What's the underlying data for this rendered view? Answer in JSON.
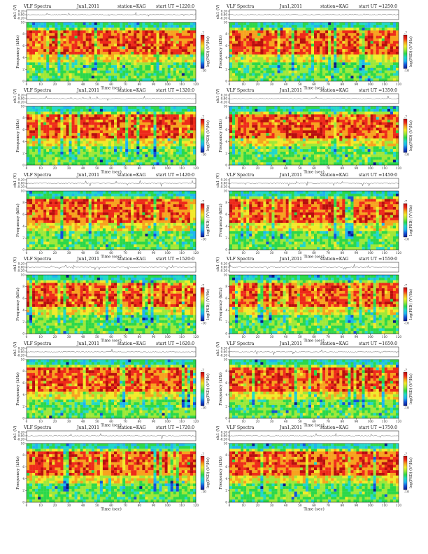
{
  "colors": {
    "colormap": [
      "#0a1a8a",
      "#1450d8",
      "#20b4f0",
      "#22d8c8",
      "#2cd84a",
      "#9ee838",
      "#f2ea2a",
      "#f7a21e",
      "#ee2a1a",
      "#b80e0e"
    ],
    "trace": "#222222",
    "frame": "#000000"
  },
  "common": {
    "title": "VLF Spectra",
    "station": "station=KAG",
    "ch_label": "ch1 (V)",
    "freq_label": "Frequency (kHz)",
    "time_label": "Time (sec)",
    "colorbar_label": "log(PSD) (V²/Hz)"
  },
  "chart_data": [
    {
      "type": "heatmap",
      "date": "Jun1,2011",
      "start_ut": "start UT =1220:0",
      "trace_yticks": [
        "0.20",
        "0.00",
        "-0.20"
      ],
      "trace_ylim": [
        -0.2,
        0.2
      ],
      "xlim": [
        0,
        120
      ],
      "xticks": [
        0,
        10,
        20,
        30,
        40,
        50,
        60,
        70,
        80,
        90,
        100,
        110,
        120
      ],
      "ylim": [
        0,
        10
      ],
      "yticks": [
        0,
        2,
        4,
        6,
        8,
        10
      ],
      "colorbar_ticks": [
        "-7",
        "-10"
      ],
      "colorbar_range": [
        -10,
        -7
      ]
    },
    {
      "type": "heatmap",
      "date": "Jun1,2011",
      "start_ut": "start UT =1250:0",
      "trace_yticks": [
        "0.20",
        "0.00",
        "-0.20"
      ],
      "trace_ylim": [
        -0.2,
        0.2
      ],
      "xlim": [
        0,
        120
      ],
      "xticks": [
        0,
        10,
        20,
        30,
        40,
        50,
        60,
        70,
        80,
        90,
        100,
        110,
        120
      ],
      "ylim": [
        0,
        10
      ],
      "yticks": [
        0,
        2,
        4,
        6,
        8,
        10
      ],
      "colorbar_ticks": [
        "-7",
        "-10"
      ],
      "colorbar_range": [
        -10,
        -7
      ]
    },
    {
      "type": "heatmap",
      "date": "Jun1,2011",
      "start_ut": "start UT =1320:0",
      "trace_yticks": [
        "0.20",
        "0.00",
        "-0.20"
      ],
      "trace_ylim": [
        -0.2,
        0.2
      ],
      "xlim": [
        0,
        120
      ],
      "xticks": [
        0,
        10,
        20,
        30,
        40,
        50,
        60,
        70,
        80,
        90,
        100,
        110,
        120
      ],
      "ylim": [
        0,
        10
      ],
      "yticks": [
        0,
        2,
        4,
        6,
        8,
        10
      ],
      "colorbar_ticks": [
        "-7",
        "-10"
      ],
      "colorbar_range": [
        -10,
        -7
      ]
    },
    {
      "type": "heatmap",
      "date": "Jun1,2011",
      "start_ut": "start UT =1350:0",
      "trace_yticks": [
        "0.20",
        "0.00",
        "-0.20"
      ],
      "trace_ylim": [
        -0.2,
        0.2
      ],
      "xlim": [
        0,
        120
      ],
      "xticks": [
        0,
        10,
        20,
        30,
        40,
        50,
        60,
        70,
        80,
        90,
        100,
        110,
        120
      ],
      "ylim": [
        0,
        10
      ],
      "yticks": [
        0,
        2,
        4,
        6,
        8,
        10
      ],
      "colorbar_ticks": [
        "-7",
        "-10"
      ],
      "colorbar_range": [
        -10,
        -7
      ]
    },
    {
      "type": "heatmap",
      "date": "Jun1,2011",
      "start_ut": "start UT =1420:0",
      "trace_yticks": [
        "0.20",
        "0.00",
        "-0.20"
      ],
      "trace_ylim": [
        -0.2,
        0.2
      ],
      "xlim": [
        0,
        120
      ],
      "xticks": [
        0,
        10,
        20,
        30,
        40,
        50,
        60,
        70,
        80,
        90,
        100,
        110,
        120
      ],
      "ylim": [
        0,
        10
      ],
      "yticks": [
        0,
        2,
        4,
        6,
        8,
        10
      ],
      "colorbar_ticks": [
        "-7",
        "-10"
      ],
      "colorbar_range": [
        -10,
        -7
      ]
    },
    {
      "type": "heatmap",
      "date": "Jun1,2011",
      "start_ut": "start UT =1450:0",
      "trace_yticks": [
        "0.20",
        "0.00",
        "-0.20"
      ],
      "trace_ylim": [
        -0.2,
        0.2
      ],
      "xlim": [
        0,
        120
      ],
      "xticks": [
        0,
        10,
        20,
        30,
        40,
        50,
        60,
        70,
        80,
        90,
        100,
        110,
        120
      ],
      "ylim": [
        0,
        10
      ],
      "yticks": [
        0,
        2,
        4,
        6,
        8,
        10
      ],
      "colorbar_ticks": [
        "-7",
        "-10"
      ],
      "colorbar_range": [
        -10,
        -7
      ]
    },
    {
      "type": "heatmap",
      "date": "Jun1,2011",
      "start_ut": "start UT =1520:0",
      "trace_yticks": [
        "0.20",
        "0.00",
        "-0.20"
      ],
      "trace_ylim": [
        -0.2,
        0.2
      ],
      "xlim": [
        0,
        120
      ],
      "xticks": [
        0,
        10,
        20,
        30,
        40,
        50,
        60,
        70,
        80,
        90,
        100,
        110,
        120
      ],
      "ylim": [
        0,
        10
      ],
      "yticks": [
        0,
        2,
        4,
        6,
        8,
        10
      ],
      "colorbar_ticks": [
        "-7",
        "-10"
      ],
      "colorbar_range": [
        -10,
        -7
      ]
    },
    {
      "type": "heatmap",
      "date": "Jun1,2011",
      "start_ut": "start UT =1550:0",
      "trace_yticks": [
        "0.20",
        "0.00",
        "-0.20"
      ],
      "trace_ylim": [
        -0.2,
        0.2
      ],
      "xlim": [
        0,
        120
      ],
      "xticks": [
        0,
        10,
        20,
        30,
        40,
        50,
        60,
        70,
        80,
        90,
        100,
        110,
        120
      ],
      "ylim": [
        0,
        10
      ],
      "yticks": [
        0,
        2,
        4,
        6,
        8,
        10
      ],
      "colorbar_ticks": [
        "-7",
        "-10"
      ],
      "colorbar_range": [
        -10,
        -7
      ]
    },
    {
      "type": "heatmap",
      "date": "Jun1,2011",
      "start_ut": "start UT =1620:0",
      "trace_yticks": [
        "0.20",
        "0.00",
        "-0.20"
      ],
      "trace_ylim": [
        -0.2,
        0.2
      ],
      "xlim": [
        0,
        120
      ],
      "xticks": [
        0,
        10,
        20,
        30,
        40,
        50,
        60,
        70,
        80,
        90,
        100,
        110,
        120
      ],
      "ylim": [
        0,
        10
      ],
      "yticks": [
        0,
        2,
        4,
        6,
        8,
        10
      ],
      "colorbar_ticks": [
        "-7",
        "-10"
      ],
      "colorbar_range": [
        -10,
        -7
      ]
    },
    {
      "type": "heatmap",
      "date": "Jun1,2011",
      "start_ut": "start UT =1650:0",
      "trace_yticks": [
        "0.20",
        "0.00",
        "-0.20"
      ],
      "trace_ylim": [
        -0.2,
        0.2
      ],
      "xlim": [
        0,
        120
      ],
      "xticks": [
        0,
        10,
        20,
        30,
        40,
        50,
        60,
        70,
        80,
        90,
        100,
        110,
        120
      ],
      "ylim": [
        0,
        10
      ],
      "yticks": [
        0,
        2,
        4,
        6,
        8,
        10
      ],
      "colorbar_ticks": [
        "-7",
        "-10"
      ],
      "colorbar_range": [
        -10,
        -7
      ]
    },
    {
      "type": "heatmap",
      "date": "Jun1,2011",
      "start_ut": "start UT =1720:0",
      "trace_yticks": [
        "0.20",
        "0.00",
        "-0.20"
      ],
      "trace_ylim": [
        -0.2,
        0.2
      ],
      "xlim": [
        0,
        120
      ],
      "xticks": [
        0,
        10,
        20,
        30,
        40,
        50,
        60,
        70,
        80,
        90,
        100,
        110,
        120
      ],
      "ylim": [
        0,
        10
      ],
      "yticks": [
        0,
        2,
        4,
        6,
        8,
        10
      ],
      "colorbar_ticks": [
        "-7",
        "-10"
      ],
      "colorbar_range": [
        -10,
        -7
      ]
    },
    {
      "type": "heatmap",
      "date": "Jun1,2011",
      "start_ut": "start UT =1750:0",
      "trace_yticks": [
        "0.20",
        "0.00",
        "-0.20"
      ],
      "trace_ylim": [
        -0.2,
        0.2
      ],
      "xlim": [
        0,
        120
      ],
      "xticks": [
        0,
        10,
        20,
        30,
        40,
        50,
        60,
        70,
        80,
        90,
        100,
        110,
        120
      ],
      "ylim": [
        0,
        10
      ],
      "yticks": [
        0,
        2,
        4,
        6,
        8,
        10
      ],
      "colorbar_ticks": [
        "-7",
        "-10"
      ],
      "colorbar_range": [
        -10,
        -7
      ]
    }
  ]
}
